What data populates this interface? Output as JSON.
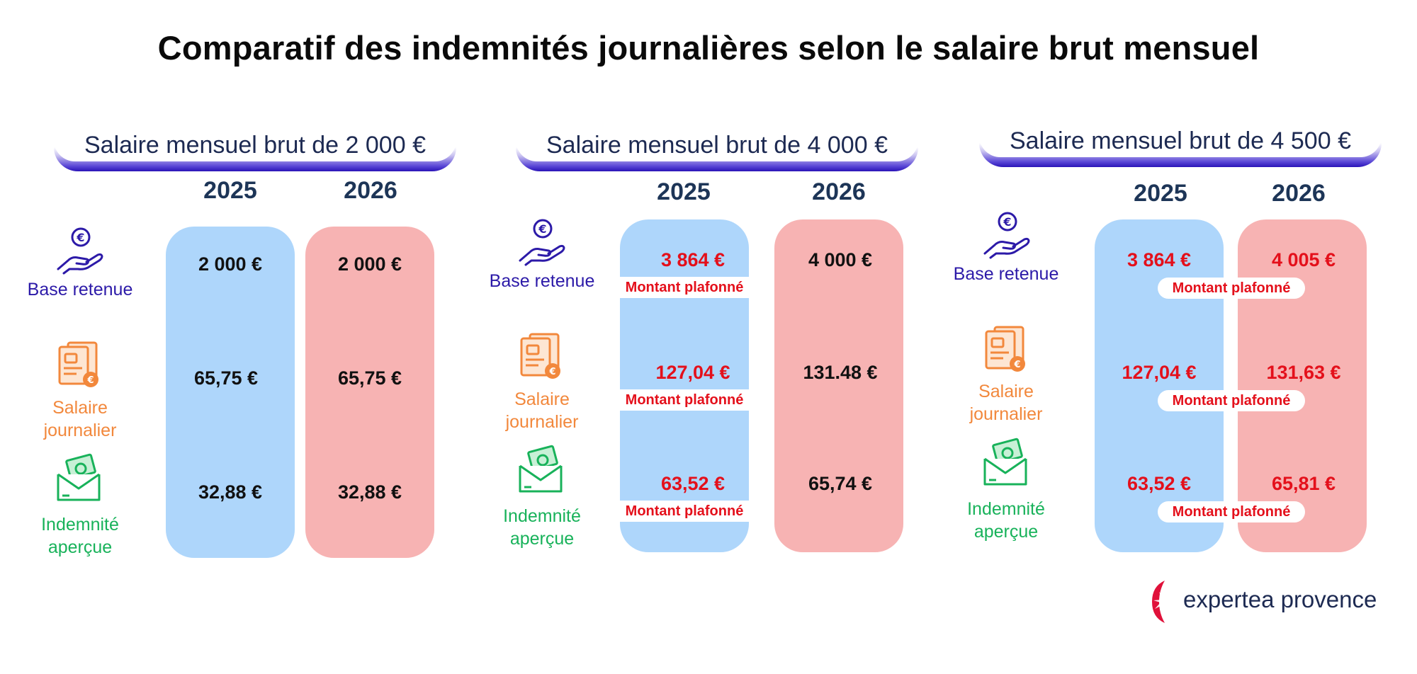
{
  "title": "Comparatif des indemnités journalières selon le salaire brut mensuel",
  "colors": {
    "col_2025": "#aed6fb",
    "col_2026": "#f7b3b3",
    "capped": "#e4101b",
    "base_label": "#2c1aa8",
    "salaire_label": "#f2883c",
    "indemnite_label": "#18b25a",
    "header_text": "#1d2a52",
    "header_bar": "#2a14b8"
  },
  "row_labels": {
    "base": "Base retenue",
    "salaire_l1": "Salaire",
    "salaire_l2": "journalier",
    "indemnite_l1": "Indemnité",
    "indemnite_l2": "aperçue"
  },
  "icons": {
    "base": "hand-euro-coin-icon",
    "salaire": "document-money-bag-icon",
    "indemnite": "envelope-banknotes-icon"
  },
  "capped_label": "Montant plafonné",
  "panels": [
    {
      "header": "Salaire mensuel brut de 2 000 €",
      "year_a": "2025",
      "year_b": "2026",
      "a": {
        "base": "2 000 €",
        "salaire": "65,75 €",
        "indemnite": "32,88 €"
      },
      "b": {
        "base": "2 000 €",
        "salaire": "65,75 €",
        "indemnite": "32,88 €"
      }
    },
    {
      "header": "Salaire mensuel brut de 4 000 €",
      "year_a": "2025",
      "year_b": "2026",
      "a": {
        "base": "3 864 €",
        "salaire": "127,04 €",
        "indemnite": "63,52 €"
      },
      "b": {
        "base": "4 000 €",
        "salaire": "131.48 €",
        "indemnite": "65,74 €"
      }
    },
    {
      "header": "Salaire mensuel brut de 4 500 €",
      "year_a": "2025",
      "year_b": "2026",
      "a": {
        "base": "3 864 €",
        "salaire": "127,04 €",
        "indemnite": "63,52 €"
      },
      "b": {
        "base": "4 005 €",
        "salaire": "131,63 €",
        "indemnite": "65,81 €"
      }
    }
  ],
  "logo": {
    "text": "expertea provence"
  }
}
